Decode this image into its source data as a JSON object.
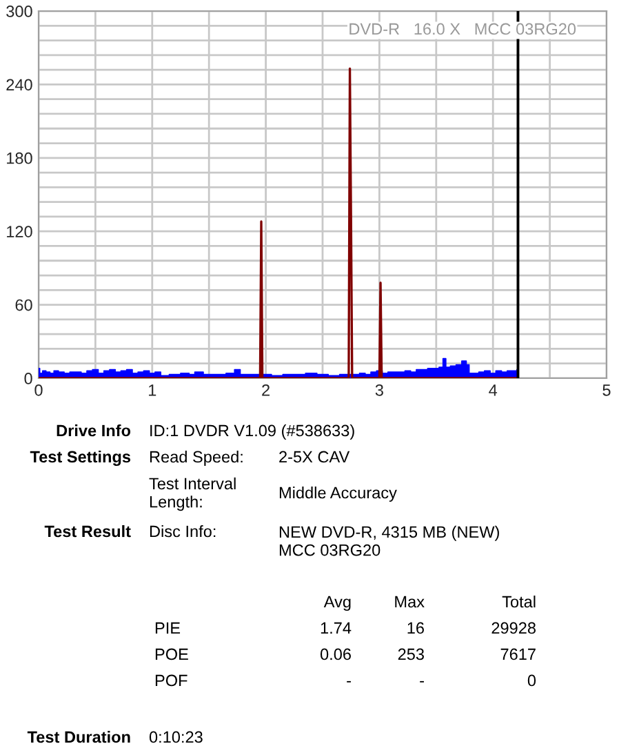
{
  "chart_data": {
    "type": "area",
    "xlim": [
      0,
      5
    ],
    "xticks": [
      0,
      {
        "value": 0.5,
        "label": null
      },
      1,
      {
        "value": 1.5,
        "label": null
      },
      2,
      {
        "value": 2.5,
        "label": null
      },
      3,
      {
        "value": 3.5,
        "label": null
      },
      4,
      {
        "value": 4.5,
        "label": null
      },
      5
    ],
    "ylim": [
      0,
      300
    ],
    "yticks": [
      0,
      {
        "value": 12,
        "label": null
      },
      {
        "value": 24,
        "label": null
      },
      {
        "value": 36,
        "label": null
      },
      {
        "value": 48,
        "label": null
      },
      60,
      {
        "value": 72,
        "label": null
      },
      {
        "value": 84,
        "label": null
      },
      {
        "value": 96,
        "label": null
      },
      {
        "value": 108,
        "label": null
      },
      120,
      {
        "value": 132,
        "label": null
      },
      {
        "value": 144,
        "label": null
      },
      {
        "value": 156,
        "label": null
      },
      {
        "value": 168,
        "label": null
      },
      180,
      {
        "value": 192,
        "label": null
      },
      {
        "value": 204,
        "label": null
      },
      {
        "value": 216,
        "label": null
      },
      {
        "value": 228,
        "label": null
      },
      240,
      {
        "value": 252,
        "label": null
      },
      {
        "value": 264,
        "label": null
      },
      {
        "value": 276,
        "label": null
      },
      {
        "value": 288,
        "label": null
      },
      300
    ],
    "grid": true,
    "series": [
      {
        "color": "#0000ff",
        "x": [
          0,
          0.02,
          0.05,
          0.08,
          0.12,
          0.15,
          0.2,
          0.25,
          0.3,
          0.35,
          0.4,
          0.45,
          0.5,
          0.55,
          0.6,
          0.65,
          0.7,
          0.75,
          0.8,
          0.85,
          0.9,
          0.95,
          1.0,
          1.05,
          1.1,
          1.2,
          1.3,
          1.35,
          1.4,
          1.5,
          1.6,
          1.7,
          1.75,
          1.8,
          1.9,
          2.0,
          2.1,
          2.2,
          2.3,
          2.4,
          2.5,
          2.6,
          2.7,
          2.8,
          2.85,
          2.9,
          2.95,
          3.0,
          3.05,
          3.1,
          3.2,
          3.25,
          3.3,
          3.35,
          3.4,
          3.45,
          3.5,
          3.55,
          3.57,
          3.6,
          3.65,
          3.7,
          3.75,
          3.78,
          3.8,
          3.85,
          3.9,
          3.95,
          4.0,
          4.05,
          4.1,
          4.15,
          4.2,
          4.22
        ],
        "values": [
          8,
          4,
          6,
          5,
          4,
          6,
          5,
          4,
          5,
          5,
          4,
          6,
          7,
          4,
          6,
          7,
          5,
          6,
          7,
          4,
          5,
          6,
          4,
          5,
          2,
          3,
          4,
          3,
          5,
          3,
          3,
          4,
          7,
          3,
          3,
          3,
          2,
          3,
          3,
          4,
          3,
          2,
          3,
          3,
          4,
          3,
          5,
          6,
          4,
          5,
          5,
          6,
          5,
          7,
          7,
          8,
          8,
          9,
          16,
          9,
          10,
          11,
          14,
          11,
          4,
          4,
          5,
          6,
          4,
          6,
          5,
          6,
          6,
          7
        ]
      },
      {
        "type": "line",
        "color": "#800000",
        "x": [
          0,
          1.95,
          1.96,
          1.97,
          2.73,
          2.74,
          2.75,
          2.76,
          3.0,
          3.01,
          3.02,
          4.22
        ],
        "values": [
          0,
          0,
          128,
          0,
          0,
          253,
          133,
          0,
          0,
          78,
          0,
          0
        ]
      }
    ],
    "ref_lines": [
      {
        "axis": "x",
        "value": 4.22,
        "color": "#000000"
      }
    ],
    "annotations": [
      "DVD-R   16.0 X   MCC 03RG20",
      "Drive Info",
      "ID:1 DVDR V1.09 (#538633)",
      "Test Settings",
      "Read Speed:",
      "2-5X CAV",
      "Test Interval\nLength:",
      "Middle Accuracy",
      "Test Result",
      "Disc Info:",
      "NEW DVD-R, 4315 MB (NEW)\nMCC 03RG20",
      "Avg",
      "Max",
      "Total",
      "PIE",
      "1.74",
      "16",
      "29928",
      "POE",
      "0.06",
      "253",
      "7617",
      "POF",
      "-",
      "-",
      "0",
      "Test Duration",
      "0:10:23"
    ]
  }
}
